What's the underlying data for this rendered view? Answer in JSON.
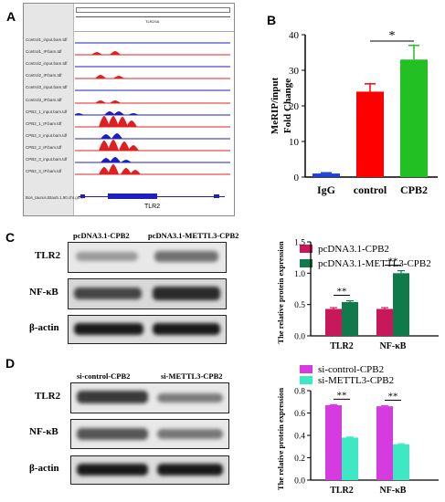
{
  "panels": {
    "a": "A",
    "b": "B",
    "c": "C",
    "d": "D"
  },
  "igv": {
    "tracks": [
      "Control1_input.bam.tdf",
      "Control1_IP.bam.tdf",
      "Control2_input.bam.tdf",
      "Control2_IP.bam.tdf",
      "Control3_input.bam.tdf",
      "Control3_IP.bam.tdf",
      "CPB2_1_input.bam.tdf",
      "CPB2_1_IP.bam.tdf",
      "CPB2_2_input.bam.tdf",
      "CPB2_2_IP.bam.tdf",
      "CPB2_3_input.bam.tdf",
      "CPB2_3_IP.bam.tdf"
    ],
    "gene_track": "Bos_taurus.Btau5.1.90.chr.gtf...",
    "gene_label": "TLR2",
    "ruler_label": "TLR2/16",
    "colors": {
      "input": "#1f1fbf",
      "ip": "#e02020"
    }
  },
  "blots": {
    "c": {
      "lanes": [
        "pcDNA3.1-CPB2",
        "pcDNA3.1-METTL3-CPB2"
      ],
      "rows": [
        "TLR2",
        "NF-κB",
        "β-actin"
      ]
    },
    "d": {
      "lanes": [
        "si-control-CPB2",
        "si-METTL3-CPB2"
      ],
      "rows": [
        "TLR2",
        "NF-κB",
        "β-actin"
      ]
    }
  },
  "chart_data": [
    {
      "id": "B",
      "type": "bar",
      "categories": [
        "IgG",
        "control",
        "CPB2"
      ],
      "values": [
        1,
        24,
        33
      ],
      "errors": [
        0.2,
        2.2,
        4.0
      ],
      "colors": [
        "#1f3fd6",
        "#ff0000",
        "#22c022"
      ],
      "ylabel": "MeRIP/input Fold Change",
      "ylim": [
        0,
        40
      ],
      "yticks": [
        0,
        10,
        20,
        30,
        40
      ],
      "annotations": [
        {
          "text": "*",
          "between": [
            "control",
            "CPB2"
          ]
        }
      ]
    },
    {
      "id": "C",
      "type": "bar",
      "categories": [
        "TLR2",
        "NF-κB"
      ],
      "series": [
        {
          "name": "pcDNA3.1-CPB2",
          "values": [
            0.43,
            0.43
          ],
          "errors": [
            0.02,
            0.02
          ],
          "color": "#c8185a"
        },
        {
          "name": "pcDNA3.1-METTL3-CPB2",
          "values": [
            0.54,
            1.0
          ],
          "errors": [
            0.02,
            0.04
          ],
          "color": "#117a4a"
        }
      ],
      "ylabel": "The relative protein expression",
      "ylim": [
        0,
        1.5
      ],
      "yticks": [
        "0.0",
        "0.5",
        "1.0",
        "1.5"
      ],
      "legend": "top",
      "annotations": [
        {
          "text": "**",
          "category": "TLR2"
        },
        {
          "text": "**",
          "category": "NF-κB"
        }
      ]
    },
    {
      "id": "D",
      "type": "bar",
      "categories": [
        "TLR2",
        "NF-κB"
      ],
      "series": [
        {
          "name": "si-control-CPB2",
          "values": [
            0.67,
            0.66
          ],
          "errors": [
            0.005,
            0.005
          ],
          "color": "#d63be0"
        },
        {
          "name": "si-METTL3-CPB2",
          "values": [
            0.38,
            0.32
          ],
          "errors": [
            0.005,
            0.005
          ],
          "color": "#3ee8c2"
        }
      ],
      "ylabel": "The relative protein expression",
      "ylim": [
        0,
        0.8
      ],
      "yticks": [
        "0.0",
        "0.2",
        "0.4",
        "0.6",
        "0.8"
      ],
      "legend": "top",
      "annotations": [
        {
          "text": "**",
          "category": "TLR2"
        },
        {
          "text": "**",
          "category": "NF-κB"
        }
      ]
    }
  ]
}
